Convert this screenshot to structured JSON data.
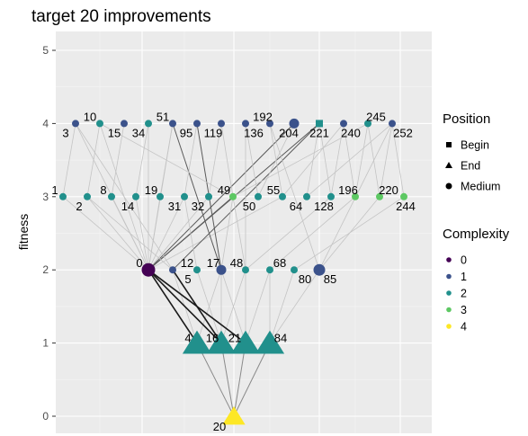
{
  "chart_data": {
    "type": "scatter",
    "title": "target 20 improvements",
    "ylabel": "fitness",
    "xlabel": "",
    "ylim": [
      0,
      5
    ],
    "yticks": [
      0,
      1,
      2,
      3,
      4,
      5
    ],
    "grid": true,
    "legend_position": "right",
    "nodes": [
      {
        "id": "3",
        "fitness": 4,
        "position": "Medium",
        "complexity": 1
      },
      {
        "id": "10",
        "fitness": 4,
        "position": "Medium",
        "complexity": 2
      },
      {
        "id": "15",
        "fitness": 4,
        "position": "Medium",
        "complexity": 1
      },
      {
        "id": "34",
        "fitness": 4,
        "position": "Medium",
        "complexity": 2
      },
      {
        "id": "51",
        "fitness": 4,
        "position": "Medium",
        "complexity": 1
      },
      {
        "id": "95",
        "fitness": 4,
        "position": "Medium",
        "complexity": 1
      },
      {
        "id": "119",
        "fitness": 4,
        "position": "Medium",
        "complexity": 1
      },
      {
        "id": "136",
        "fitness": 4,
        "position": "Medium",
        "complexity": 1
      },
      {
        "id": "192",
        "fitness": 4,
        "position": "Medium",
        "complexity": 1
      },
      {
        "id": "204",
        "fitness": 4,
        "position": "Medium",
        "complexity": 1
      },
      {
        "id": "221",
        "fitness": 4,
        "position": "Begin",
        "complexity": 2
      },
      {
        "id": "240",
        "fitness": 4,
        "position": "Medium",
        "complexity": 1
      },
      {
        "id": "245",
        "fitness": 4,
        "position": "Medium",
        "complexity": 2
      },
      {
        "id": "252",
        "fitness": 4,
        "position": "Medium",
        "complexity": 1
      },
      {
        "id": "1",
        "fitness": 3,
        "position": "Medium",
        "complexity": 2
      },
      {
        "id": "2",
        "fitness": 3,
        "position": "Medium",
        "complexity": 2
      },
      {
        "id": "8",
        "fitness": 3,
        "position": "Medium",
        "complexity": 2
      },
      {
        "id": "14",
        "fitness": 3,
        "position": "Medium",
        "complexity": 2
      },
      {
        "id": "19",
        "fitness": 3,
        "position": "Medium",
        "complexity": 2
      },
      {
        "id": "31",
        "fitness": 3,
        "position": "Medium",
        "complexity": 2
      },
      {
        "id": "32",
        "fitness": 3,
        "position": "Medium",
        "complexity": 2
      },
      {
        "id": "49",
        "fitness": 3,
        "position": "Medium",
        "complexity": 3
      },
      {
        "id": "50",
        "fitness": 3,
        "position": "Medium",
        "complexity": 2
      },
      {
        "id": "55",
        "fitness": 3,
        "position": "Medium",
        "complexity": 2
      },
      {
        "id": "64",
        "fitness": 3,
        "position": "Medium",
        "complexity": 2
      },
      {
        "id": "128",
        "fitness": 3,
        "position": "Medium",
        "complexity": 2
      },
      {
        "id": "196",
        "fitness": 3,
        "position": "Medium",
        "complexity": 3
      },
      {
        "id": "220",
        "fitness": 3,
        "position": "Medium",
        "complexity": 3
      },
      {
        "id": "244",
        "fitness": 3,
        "position": "Medium",
        "complexity": 3
      },
      {
        "id": "0",
        "fitness": 2,
        "position": "Medium",
        "complexity": 0
      },
      {
        "id": "5",
        "fitness": 2,
        "position": "Medium",
        "complexity": 1
      },
      {
        "id": "12",
        "fitness": 2,
        "position": "Medium",
        "complexity": 2
      },
      {
        "id": "17",
        "fitness": 2,
        "position": "Medium",
        "complexity": 1
      },
      {
        "id": "48",
        "fitness": 2,
        "position": "Medium",
        "complexity": 2
      },
      {
        "id": "68",
        "fitness": 2,
        "position": "Medium",
        "complexity": 2
      },
      {
        "id": "80",
        "fitness": 2,
        "position": "Medium",
        "complexity": 2
      },
      {
        "id": "85",
        "fitness": 2,
        "position": "Medium",
        "complexity": 1
      },
      {
        "id": "4",
        "fitness": 1,
        "position": "End",
        "complexity": 2
      },
      {
        "id": "16",
        "fitness": 1,
        "position": "End",
        "complexity": 2
      },
      {
        "id": "21",
        "fitness": 1,
        "position": "End",
        "complexity": 2
      },
      {
        "id": "84",
        "fitness": 1,
        "position": "End",
        "complexity": 2
      },
      {
        "id": "20",
        "fitness": 0,
        "position": "End",
        "complexity": 4
      }
    ],
    "legend": {
      "position": {
        "title": "Position",
        "items": [
          "Begin",
          "End",
          "Medium"
        ]
      },
      "complexity": {
        "title": "Complexity",
        "items": [
          "0",
          "1",
          "2",
          "3",
          "4"
        ]
      }
    },
    "colors": {
      "complexity": [
        "#440154",
        "#3b528b",
        "#21908c",
        "#5dc863",
        "#fde725"
      ],
      "panel": "#ebebeb",
      "grid": "#ffffff"
    }
  }
}
